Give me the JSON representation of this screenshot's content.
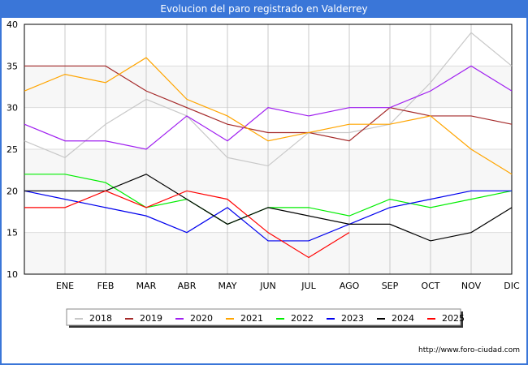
{
  "chart_data": {
    "type": "line",
    "title": "Evolucion del paro registrado en Valderrey",
    "xlabel": "",
    "ylabel": "",
    "ylim": [
      10,
      40
    ],
    "yticks": [
      10,
      15,
      20,
      25,
      30,
      35,
      40
    ],
    "categories": [
      "",
      "ENE",
      "FEB",
      "MAR",
      "ABR",
      "MAY",
      "JUN",
      "JUL",
      "AGO",
      "SEP",
      "OCT",
      "NOV",
      "DIC"
    ],
    "grid": true,
    "legend_position": "bottom",
    "series": [
      {
        "name": "2018",
        "color": "#c8c8c8",
        "values": [
          26,
          24,
          28,
          31,
          29,
          24,
          23,
          27,
          27,
          28,
          33,
          39,
          35
        ]
      },
      {
        "name": "2019",
        "color": "#a52a2a",
        "values": [
          35,
          35,
          35,
          32,
          30,
          28,
          27,
          27,
          26,
          30,
          29,
          29,
          28
        ]
      },
      {
        "name": "2020",
        "color": "#a020f0",
        "values": [
          28,
          26,
          26,
          25,
          29,
          26,
          30,
          29,
          30,
          30,
          32,
          35,
          32
        ]
      },
      {
        "name": "2021",
        "color": "#ffa500",
        "values": [
          32,
          34,
          33,
          36,
          31,
          29,
          26,
          27,
          28,
          28,
          29,
          25,
          22
        ]
      },
      {
        "name": "2022",
        "color": "#00ee00",
        "values": [
          22,
          22,
          21,
          18,
          19,
          16,
          18,
          18,
          17,
          19,
          18,
          19,
          20
        ]
      },
      {
        "name": "2023",
        "color": "#0000ee",
        "values": [
          20,
          19,
          18,
          17,
          15,
          18,
          14,
          14,
          16,
          18,
          19,
          20,
          20
        ]
      },
      {
        "name": "2024",
        "color": "#000000",
        "values": [
          20,
          20,
          20,
          22,
          19,
          16,
          18,
          17,
          16,
          16,
          14,
          15,
          18
        ]
      },
      {
        "name": "2025",
        "color": "#ff0000",
        "values": [
          18,
          18,
          20,
          18,
          20,
          19,
          15,
          12,
          15,
          null,
          null,
          null,
          null
        ]
      }
    ]
  },
  "source": "http://www.foro-ciudad.com"
}
